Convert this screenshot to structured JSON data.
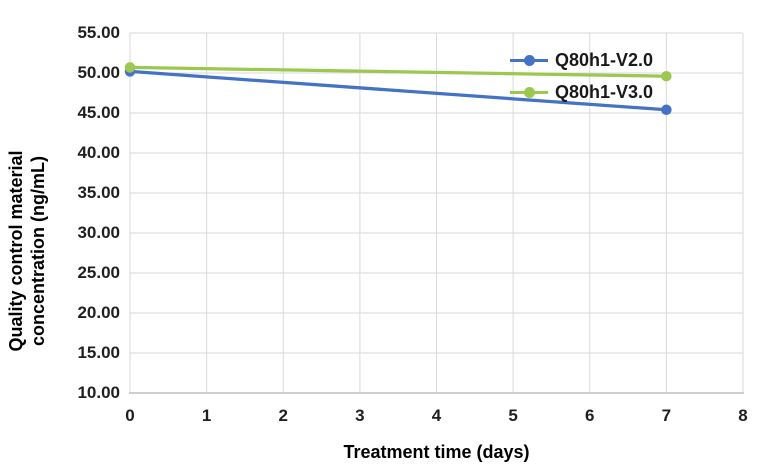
{
  "chart_data": {
    "type": "line",
    "title": "",
    "x": [
      0,
      7
    ],
    "series": [
      {
        "name": "Q80h1-V2.0",
        "color": "#4472C4",
        "values": [
          50.2,
          45.4
        ]
      },
      {
        "name": "Q80h1-V3.0",
        "color": "#9CC84F",
        "values": [
          50.7,
          49.6
        ]
      }
    ],
    "xlabel": "Treatment time (days)",
    "ylabel": "Quality control material concentration (ng/mL)",
    "ylabel_lines": [
      "Quality control material",
      "concentration (ng/mL)"
    ],
    "xlim": [
      0,
      8
    ],
    "ylim": [
      10,
      55
    ],
    "xticks": [
      0,
      1,
      2,
      3,
      4,
      5,
      6,
      7,
      8
    ],
    "xtick_labels": [
      "0",
      "1",
      "2",
      "3",
      "4",
      "5",
      "6",
      "7",
      "8"
    ],
    "yticks": [
      10,
      15,
      20,
      25,
      30,
      35,
      40,
      45,
      50,
      55
    ],
    "ytick_labels": [
      "10.00",
      "15.00",
      "20.00",
      "25.00",
      "30.00",
      "35.00",
      "40.00",
      "45.00",
      "50.00",
      "55.00"
    ],
    "grid": true,
    "legend_position": "inside-top-right",
    "colors": {
      "gridline": "#D9D9D9",
      "axis_line": "#BFBFBF",
      "tick_text": "#1F1F1F",
      "title_text": "#000000",
      "background": "#FFFFFF"
    }
  }
}
